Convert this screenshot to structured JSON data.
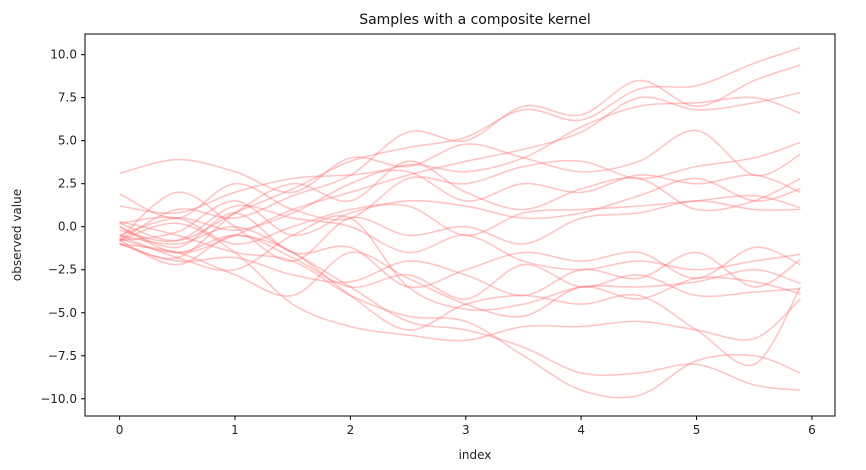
{
  "chart_data": {
    "type": "line",
    "title": "Samples with a composite kernel",
    "xlabel": "index",
    "ylabel": "observed value",
    "xlim": [
      -0.3,
      6.2
    ],
    "ylim": [
      -11.0,
      11.2
    ],
    "xticks": [
      0,
      1,
      2,
      3,
      4,
      5,
      6
    ],
    "yticks": [
      -10.0,
      -7.5,
      -5.0,
      -2.5,
      0.0,
      2.5,
      5.0,
      7.5,
      10.0
    ],
    "ytick_labels": [
      "−10.0",
      "−7.5",
      "−5.0",
      "−2.5",
      "0.0",
      "2.5",
      "5.0",
      "7.5",
      "10.0"
    ],
    "grid": false,
    "line_color": "#ff6f6f",
    "line_alpha": 0.4,
    "x": [
      0,
      0.5,
      1,
      1.5,
      2,
      2.5,
      3,
      3.5,
      4,
      4.5,
      5,
      5.5,
      5.9
    ],
    "series": [
      {
        "values": [
          0.2,
          -0.8,
          0.8,
          2.2,
          3.8,
          4.6,
          5.2,
          6.8,
          6.2,
          8.0,
          8.2,
          9.5,
          10.4
        ]
      },
      {
        "values": [
          -0.8,
          1.0,
          0.5,
          1.8,
          3.0,
          5.5,
          5.0,
          7.0,
          6.5,
          8.5,
          7.0,
          8.5,
          9.4
        ]
      },
      {
        "values": [
          0.0,
          -1.5,
          -0.5,
          1.0,
          2.0,
          3.0,
          3.8,
          4.5,
          5.5,
          7.5,
          6.8,
          7.2,
          7.8
        ]
      },
      {
        "values": [
          -0.5,
          0.5,
          -0.2,
          0.8,
          2.5,
          3.6,
          3.2,
          4.0,
          5.8,
          7.0,
          7.2,
          7.5,
          6.6
        ]
      },
      {
        "values": [
          3.1,
          3.9,
          3.2,
          2.0,
          4.0,
          3.5,
          4.8,
          4.0,
          3.2,
          3.8,
          5.6,
          3.0,
          4.2
        ]
      },
      {
        "values": [
          1.9,
          0.5,
          2.5,
          1.0,
          0.5,
          2.8,
          2.5,
          3.5,
          3.8,
          2.8,
          3.5,
          4.0,
          4.9
        ]
      },
      {
        "values": [
          1.2,
          0.8,
          2.0,
          2.8,
          3.0,
          3.2,
          1.5,
          2.5,
          2.0,
          3.0,
          2.5,
          3.0,
          2.0
        ]
      },
      {
        "values": [
          -1.0,
          -1.8,
          0.8,
          2.5,
          1.5,
          3.8,
          2.0,
          1.0,
          2.2,
          2.8,
          1.0,
          1.5,
          2.8
        ]
      },
      {
        "values": [
          -0.8,
          -0.3,
          1.5,
          -0.5,
          0.8,
          1.5,
          1.2,
          0.5,
          0.8,
          1.8,
          2.8,
          1.5,
          2.2
        ]
      },
      {
        "values": [
          0.2,
          0.5,
          -1.0,
          0.0,
          1.0,
          1.2,
          -0.5,
          0.8,
          1.0,
          1.2,
          1.5,
          1.8,
          1.1
        ]
      },
      {
        "values": [
          -0.7,
          2.0,
          0.0,
          -2.0,
          0.5,
          -0.5,
          0.0,
          -1.0,
          0.5,
          0.8,
          1.5,
          1.0,
          1.0
        ]
      },
      {
        "values": [
          -0.2,
          -0.8,
          1.2,
          0.5,
          0.0,
          -1.5,
          -0.5,
          -2.0,
          -2.5,
          -2.0,
          -2.5,
          -2.0,
          -1.6
        ]
      },
      {
        "values": [
          0.0,
          -1.2,
          0.8,
          -1.5,
          -1.2,
          -3.5,
          -2.5,
          -1.5,
          -2.0,
          -1.5,
          -3.0,
          -1.2,
          -2.2
        ]
      },
      {
        "values": [
          -1.0,
          -2.0,
          -1.8,
          -2.8,
          -3.2,
          -2.0,
          -2.8,
          -4.0,
          -2.5,
          -3.0,
          -1.5,
          -3.5,
          -1.9
        ]
      },
      {
        "values": [
          -0.5,
          -1.8,
          -2.5,
          -0.5,
          0.5,
          -3.5,
          -4.8,
          -4.5,
          -3.5,
          -3.5,
          -3.2,
          -2.5,
          -3.3
        ]
      },
      {
        "values": [
          -0.8,
          -2.2,
          -0.5,
          -1.8,
          -3.5,
          -2.8,
          -4.2,
          -2.2,
          -3.5,
          -2.8,
          -4.0,
          -3.8,
          -3.6
        ]
      },
      {
        "values": [
          -1.0,
          -1.5,
          -2.8,
          -4.0,
          -1.5,
          -3.0,
          -4.5,
          -5.2,
          -3.5,
          -4.2,
          -3.0,
          -3.2,
          -3.9
        ]
      },
      {
        "values": [
          -0.8,
          0.2,
          -1.5,
          -4.5,
          -5.8,
          -6.3,
          -6.6,
          -5.8,
          -5.8,
          -5.5,
          -6.0,
          -6.5,
          -4.2
        ]
      },
      {
        "values": [
          -0.5,
          -1.0,
          0.0,
          -1.5,
          -3.5,
          -5.5,
          -6.0,
          -7.0,
          -8.5,
          -8.5,
          -8.0,
          -9.2,
          -9.5
        ]
      },
      {
        "values": [
          -0.7,
          -1.5,
          -0.5,
          -1.5,
          -4.0,
          -6.0,
          -4.5,
          -4.0,
          -4.5,
          -4.0,
          -6.0,
          -8.0,
          -3.5
        ]
      },
      {
        "values": [
          0.3,
          -0.5,
          -1.5,
          -2.0,
          -4.0,
          -5.2,
          -5.5,
          -7.5,
          -9.5,
          -9.8,
          -7.8,
          -7.5,
          -8.5
        ]
      }
    ]
  }
}
